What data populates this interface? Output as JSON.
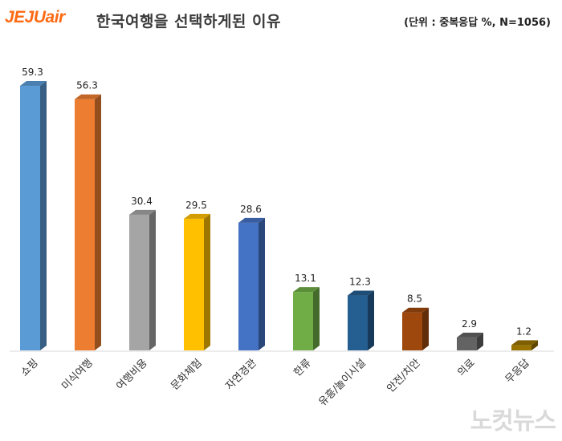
{
  "header": {
    "logo_text": "JEJUair",
    "title": "한국여행을 선택하게된 이유",
    "unit_note": "(단위 : 중복응답 %, N=1056)"
  },
  "watermark": "노컷뉴스",
  "colors": {
    "logo": "#ff6a13"
  },
  "chart_data": {
    "type": "bar",
    "title": "한국여행을 선택하게된 이유",
    "xlabel": "",
    "ylabel": "",
    "ylim": [
      0,
      62
    ],
    "grid": false,
    "legend": "none",
    "categories": [
      "쇼핑",
      "미식여행",
      "여행비용",
      "문화체험",
      "자연경관",
      "한류",
      "유흥/놀이시설",
      "안전/치안",
      "의료",
      "무응답"
    ],
    "values": [
      59.3,
      56.3,
      30.4,
      29.5,
      28.6,
      13.1,
      12.3,
      8.5,
      2.9,
      1.2
    ],
    "value_labels": [
      "59.3",
      "56.3",
      "30.4",
      "29.5",
      "28.6",
      "13.1",
      "12.3",
      "8.5",
      "2.9",
      "1.2"
    ],
    "colors": [
      "#5b9bd5",
      "#ed7d31",
      "#a5a5a5",
      "#ffc000",
      "#4472c4",
      "#70ad47",
      "#255e91",
      "#9e480e",
      "#636363",
      "#997300"
    ]
  }
}
